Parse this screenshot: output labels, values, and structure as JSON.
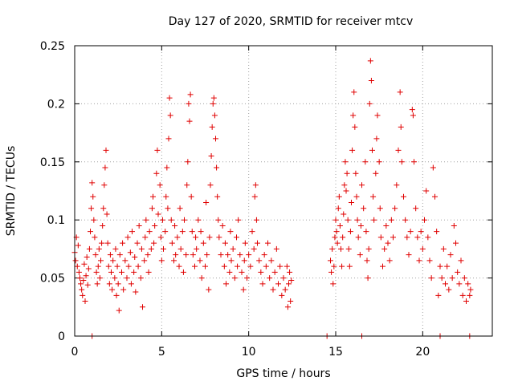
{
  "chart_data": {
    "type": "scatter",
    "title": "Day 127 of 2020, SRMTID for receiver mtcv",
    "xlabel": "GPS time / hours",
    "ylabel": "SRMTID / TECUs",
    "xlim": [
      0,
      24
    ],
    "ylim": [
      0,
      0.25
    ],
    "x_ticks": [
      0,
      5,
      10,
      15,
      20
    ],
    "x_tick_labels": [
      "0",
      "5",
      "10",
      "15",
      "20"
    ],
    "y_ticks": [
      0,
      0.05,
      0.1,
      0.15,
      0.2,
      0.25
    ],
    "y_tick_labels": [
      "0",
      "0.05",
      "0.1",
      "0.15",
      "0.2",
      "0.25"
    ],
    "grid": true,
    "marker": "+",
    "color": "#e00000",
    "series": [
      {
        "name": "SRMTID",
        "points": [
          [
            0.0,
            0.072
          ],
          [
            0.05,
            0.065
          ],
          [
            0.1,
            0.085
          ],
          [
            0.15,
            0.06
          ],
          [
            0.2,
            0.078
          ],
          [
            0.25,
            0.055
          ],
          [
            0.3,
            0.05
          ],
          [
            0.35,
            0.045
          ],
          [
            0.4,
            0.04
          ],
          [
            0.45,
            0.035
          ],
          [
            0.5,
            0.048
          ],
          [
            0.55,
            0.062
          ],
          [
            0.6,
            0.03
          ],
          [
            0.65,
            0.052
          ],
          [
            0.7,
            0.068
          ],
          [
            0.75,
            0.044
          ],
          [
            0.8,
            0.058
          ],
          [
            0.85,
            0.075
          ],
          [
            0.9,
            0.09
          ],
          [
            0.95,
            0.11
          ],
          [
            1.0,
            0.132
          ],
          [
            1.05,
            0.12
          ],
          [
            1.1,
            0.1
          ],
          [
            1.15,
            0.085
          ],
          [
            1.2,
            0.07
          ],
          [
            1.25,
            0.055
          ],
          [
            1.3,
            0.045
          ],
          [
            1.35,
            0.06
          ],
          [
            1.4,
            0.075
          ],
          [
            1.45,
            0.05
          ],
          [
            1.5,
            0.065
          ],
          [
            1.55,
            0.08
          ],
          [
            1.6,
            0.095
          ],
          [
            1.65,
            0.11
          ],
          [
            1.7,
            0.13
          ],
          [
            1.75,
            0.145
          ],
          [
            1.8,
            0.16
          ],
          [
            1.85,
            0.105
          ],
          [
            1.9,
            0.08
          ],
          [
            1.95,
            0.06
          ],
          [
            2.0,
            0.045
          ],
          [
            2.05,
            0.07
          ],
          [
            2.1,
            0.055
          ],
          [
            2.15,
            0.04
          ],
          [
            2.2,
            0.065
          ],
          [
            2.3,
            0.05
          ],
          [
            2.35,
            0.075
          ],
          [
            2.4,
            0.035
          ],
          [
            2.45,
            0.06
          ],
          [
            2.5,
            0.045
          ],
          [
            2.55,
            0.022
          ],
          [
            2.6,
            0.07
          ],
          [
            2.7,
            0.055
          ],
          [
            2.75,
            0.08
          ],
          [
            2.8,
            0.04
          ],
          [
            2.9,
            0.065
          ],
          [
            3.0,
            0.05
          ],
          [
            3.05,
            0.085
          ],
          [
            3.1,
            0.06
          ],
          [
            3.2,
            0.072
          ],
          [
            3.25,
            0.045
          ],
          [
            3.3,
            0.09
          ],
          [
            3.4,
            0.055
          ],
          [
            3.45,
            0.068
          ],
          [
            3.5,
            0.038
          ],
          [
            3.6,
            0.08
          ],
          [
            3.65,
            0.06
          ],
          [
            3.7,
            0.095
          ],
          [
            3.8,
            0.05
          ],
          [
            3.85,
            0.075
          ],
          [
            3.9,
            0.025
          ],
          [
            4.0,
            0.065
          ],
          [
            4.05,
            0.085
          ],
          [
            4.1,
            0.1
          ],
          [
            4.2,
            0.07
          ],
          [
            4.25,
            0.055
          ],
          [
            4.3,
            0.09
          ],
          [
            4.4,
            0.075
          ],
          [
            4.45,
            0.11
          ],
          [
            4.5,
            0.12
          ],
          [
            4.55,
            0.08
          ],
          [
            4.6,
            0.095
          ],
          [
            4.7,
            0.14
          ],
          [
            4.75,
            0.16
          ],
          [
            4.8,
            0.105
          ],
          [
            4.9,
            0.13
          ],
          [
            4.95,
            0.085
          ],
          [
            5.0,
            0.065
          ],
          [
            5.05,
            0.1
          ],
          [
            5.1,
            0.075
          ],
          [
            5.2,
            0.09
          ],
          [
            5.25,
            0.12
          ],
          [
            5.3,
            0.145
          ],
          [
            5.35,
            0.11
          ],
          [
            5.4,
            0.17
          ],
          [
            5.45,
            0.205
          ],
          [
            5.5,
            0.19
          ],
          [
            5.55,
            0.1
          ],
          [
            5.6,
            0.08
          ],
          [
            5.7,
            0.065
          ],
          [
            5.75,
            0.095
          ],
          [
            5.8,
            0.07
          ],
          [
            5.9,
            0.085
          ],
          [
            6.0,
            0.06
          ],
          [
            6.05,
            0.11
          ],
          [
            6.1,
            0.075
          ],
          [
            6.2,
            0.09
          ],
          [
            6.25,
            0.055
          ],
          [
            6.3,
            0.1
          ],
          [
            6.4,
            0.07
          ],
          [
            6.45,
            0.13
          ],
          [
            6.5,
            0.15
          ],
          [
            6.55,
            0.2
          ],
          [
            6.6,
            0.185
          ],
          [
            6.65,
            0.208
          ],
          [
            6.7,
            0.12
          ],
          [
            6.75,
            0.09
          ],
          [
            6.8,
            0.07
          ],
          [
            6.9,
            0.06
          ],
          [
            6.95,
            0.085
          ],
          [
            7.0,
            0.075
          ],
          [
            7.1,
            0.1
          ],
          [
            7.2,
            0.065
          ],
          [
            7.25,
            0.09
          ],
          [
            7.3,
            0.05
          ],
          [
            7.4,
            0.08
          ],
          [
            7.5,
            0.06
          ],
          [
            7.55,
            0.115
          ],
          [
            7.6,
            0.07
          ],
          [
            7.7,
            0.04
          ],
          [
            7.75,
            0.085
          ],
          [
            7.8,
            0.13
          ],
          [
            7.85,
            0.155
          ],
          [
            7.9,
            0.18
          ],
          [
            7.95,
            0.2
          ],
          [
            8.0,
            0.205
          ],
          [
            8.05,
            0.19
          ],
          [
            8.1,
            0.17
          ],
          [
            8.15,
            0.145
          ],
          [
            8.2,
            0.12
          ],
          [
            8.25,
            0.1
          ],
          [
            8.3,
            0.085
          ],
          [
            8.4,
            0.07
          ],
          [
            8.5,
            0.095
          ],
          [
            8.6,
            0.06
          ],
          [
            8.65,
            0.08
          ],
          [
            8.7,
            0.045
          ],
          [
            8.8,
            0.07
          ],
          [
            8.9,
            0.055
          ],
          [
            8.95,
            0.09
          ],
          [
            9.0,
            0.065
          ],
          [
            9.1,
            0.075
          ],
          [
            9.2,
            0.05
          ],
          [
            9.3,
            0.085
          ],
          [
            9.35,
            0.06
          ],
          [
            9.4,
            0.1
          ],
          [
            9.5,
            0.07
          ],
          [
            9.6,
            0.055
          ],
          [
            9.7,
            0.04
          ],
          [
            9.75,
            0.065
          ],
          [
            9.8,
            0.08
          ],
          [
            9.9,
            0.05
          ],
          [
            10.0,
            0.07
          ],
          [
            10.1,
            0.06
          ],
          [
            10.2,
            0.09
          ],
          [
            10.3,
            0.075
          ],
          [
            10.35,
            0.12
          ],
          [
            10.4,
            0.13
          ],
          [
            10.45,
            0.1
          ],
          [
            10.5,
            0.08
          ],
          [
            10.6,
            0.065
          ],
          [
            10.7,
            0.055
          ],
          [
            10.8,
            0.045
          ],
          [
            10.9,
            0.07
          ],
          [
            11.0,
            0.06
          ],
          [
            11.1,
            0.08
          ],
          [
            11.2,
            0.05
          ],
          [
            11.3,
            0.065
          ],
          [
            11.4,
            0.04
          ],
          [
            11.5,
            0.055
          ],
          [
            11.6,
            0.075
          ],
          [
            11.7,
            0.045
          ],
          [
            11.8,
            0.06
          ],
          [
            11.9,
            0.035
          ],
          [
            12.0,
            0.05
          ],
          [
            12.1,
            0.04
          ],
          [
            12.2,
            0.06
          ],
          [
            12.25,
            0.025
          ],
          [
            12.3,
            0.045
          ],
          [
            12.35,
            0.055
          ],
          [
            12.4,
            0.03
          ],
          [
            12.45,
            0.048
          ],
          [
            14.7,
            0.065
          ],
          [
            14.75,
            0.055
          ],
          [
            14.8,
            0.075
          ],
          [
            14.85,
            0.045
          ],
          [
            14.9,
            0.06
          ],
          [
            14.95,
            0.085
          ],
          [
            15.0,
            0.1
          ],
          [
            15.05,
            0.09
          ],
          [
            15.1,
            0.08
          ],
          [
            15.15,
            0.11
          ],
          [
            15.2,
            0.12
          ],
          [
            15.25,
            0.095
          ],
          [
            15.3,
            0.075
          ],
          [
            15.35,
            0.06
          ],
          [
            15.4,
            0.085
          ],
          [
            15.45,
            0.105
          ],
          [
            15.5,
            0.13
          ],
          [
            15.55,
            0.15
          ],
          [
            15.6,
            0.125
          ],
          [
            15.65,
            0.14
          ],
          [
            15.7,
            0.1
          ],
          [
            15.75,
            0.075
          ],
          [
            15.8,
            0.06
          ],
          [
            15.85,
            0.09
          ],
          [
            15.9,
            0.115
          ],
          [
            15.95,
            0.16
          ],
          [
            16.0,
            0.19
          ],
          [
            16.05,
            0.21
          ],
          [
            16.1,
            0.18
          ],
          [
            16.15,
            0.14
          ],
          [
            16.2,
            0.12
          ],
          [
            16.25,
            0.1
          ],
          [
            16.3,
            0.085
          ],
          [
            16.4,
            0.07
          ],
          [
            16.45,
            0.095
          ],
          [
            16.5,
            0.13
          ],
          [
            16.6,
            0.11
          ],
          [
            16.7,
            0.15
          ],
          [
            16.75,
            0.09
          ],
          [
            16.8,
            0.065
          ],
          [
            16.85,
            0.05
          ],
          [
            16.9,
            0.075
          ],
          [
            16.95,
            0.2
          ],
          [
            17.0,
            0.237
          ],
          [
            17.05,
            0.22
          ],
          [
            17.1,
            0.16
          ],
          [
            17.15,
            0.12
          ],
          [
            17.2,
            0.1
          ],
          [
            17.3,
            0.14
          ],
          [
            17.35,
            0.17
          ],
          [
            17.4,
            0.19
          ],
          [
            17.5,
            0.15
          ],
          [
            17.55,
            0.11
          ],
          [
            17.6,
            0.085
          ],
          [
            17.7,
            0.06
          ],
          [
            17.8,
            0.075
          ],
          [
            17.9,
            0.095
          ],
          [
            18.0,
            0.08
          ],
          [
            18.1,
            0.065
          ],
          [
            18.2,
            0.1
          ],
          [
            18.3,
            0.085
          ],
          [
            18.4,
            0.11
          ],
          [
            18.5,
            0.13
          ],
          [
            18.6,
            0.16
          ],
          [
            18.7,
            0.21
          ],
          [
            18.75,
            0.18
          ],
          [
            18.8,
            0.15
          ],
          [
            18.9,
            0.12
          ],
          [
            19.0,
            0.1
          ],
          [
            19.1,
            0.085
          ],
          [
            19.2,
            0.07
          ],
          [
            19.3,
            0.09
          ],
          [
            19.4,
            0.195
          ],
          [
            19.45,
            0.19
          ],
          [
            19.5,
            0.15
          ],
          [
            19.6,
            0.11
          ],
          [
            19.7,
            0.085
          ],
          [
            19.8,
            0.065
          ],
          [
            19.9,
            0.09
          ],
          [
            20.0,
            0.075
          ],
          [
            20.1,
            0.1
          ],
          [
            20.2,
            0.125
          ],
          [
            20.3,
            0.085
          ],
          [
            20.4,
            0.065
          ],
          [
            20.5,
            0.05
          ],
          [
            20.6,
            0.145
          ],
          [
            20.7,
            0.12
          ],
          [
            20.8,
            0.09
          ],
          [
            20.9,
            0.035
          ],
          [
            21.0,
            0.06
          ],
          [
            21.1,
            0.05
          ],
          [
            21.2,
            0.075
          ],
          [
            21.3,
            0.045
          ],
          [
            21.4,
            0.06
          ],
          [
            21.5,
            0.04
          ],
          [
            21.6,
            0.07
          ],
          [
            21.7,
            0.05
          ],
          [
            21.8,
            0.095
          ],
          [
            21.9,
            0.08
          ],
          [
            22.0,
            0.055
          ],
          [
            22.1,
            0.045
          ],
          [
            22.2,
            0.065
          ],
          [
            22.3,
            0.035
          ],
          [
            22.4,
            0.05
          ],
          [
            22.5,
            0.03
          ],
          [
            22.6,
            0.045
          ],
          [
            22.7,
            0.035
          ],
          [
            22.75,
            0.04
          ],
          [
            1.0,
            0.0
          ],
          [
            14.5,
            0.0
          ],
          [
            16.5,
            0.0
          ],
          [
            21.0,
            0.0
          ],
          [
            22.7,
            0.0
          ]
        ]
      }
    ]
  }
}
